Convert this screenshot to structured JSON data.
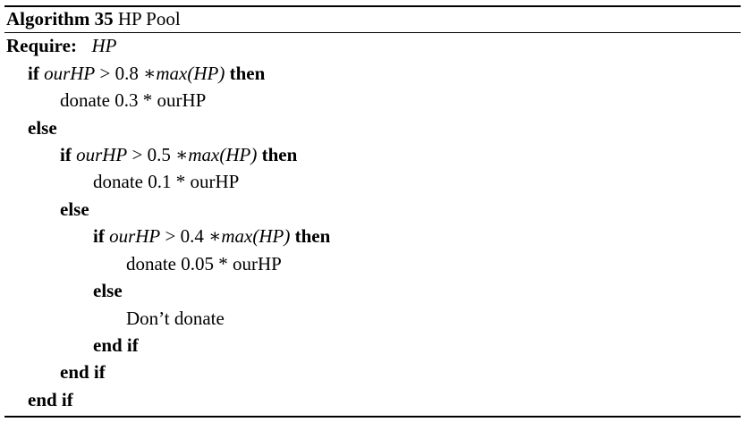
{
  "algorithm": {
    "label": "Algorithm 35",
    "title": "HP Pool"
  },
  "require": {
    "keyword": "Require:",
    "value": "HP"
  },
  "lines": [
    {
      "kw": "if",
      "var": "ourHP",
      "op": ">",
      "coef": "0.8",
      "mul": "∗",
      "func": "max",
      "arg": "(HP)",
      "then": "then"
    },
    {
      "text": "donate 0.3 * ourHP"
    },
    {
      "kw": "else"
    },
    {
      "kw": "if",
      "var": "ourHP",
      "op": ">",
      "coef": "0.5",
      "mul": "∗",
      "func": "max",
      "arg": "(HP)",
      "then": "then"
    },
    {
      "text": "donate 0.1 * ourHP"
    },
    {
      "kw": "else"
    },
    {
      "kw": "if",
      "var": "ourHP",
      "op": ">",
      "coef": "0.4",
      "mul": "∗",
      "func": "max",
      "arg": "(HP)",
      "then": "then"
    },
    {
      "text": "donate 0.05 * ourHP"
    },
    {
      "kw": "else"
    },
    {
      "text": "Don’t donate"
    },
    {
      "kw": "end if"
    },
    {
      "kw": "end if"
    },
    {
      "kw": "end if"
    }
  ]
}
